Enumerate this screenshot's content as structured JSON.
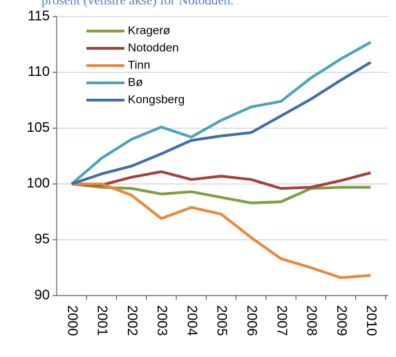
{
  "chart_data": {
    "type": "line",
    "caption": "prosent (venstre akse) for Notodden.",
    "categories": [
      "2000",
      "2001",
      "2002",
      "2003",
      "2004",
      "2005",
      "2006",
      "2007",
      "2008",
      "2009",
      "2010"
    ],
    "series": [
      {
        "name": "Kragerø",
        "color": "#7f9f3f",
        "values": [
          100,
          99.7,
          99.6,
          99.1,
          99.3,
          98.8,
          98.3,
          98.4,
          99.6,
          99.7,
          99.7
        ]
      },
      {
        "name": "Notodden",
        "color": "#a5403a",
        "values": [
          100,
          99.9,
          100.6,
          101.1,
          100.4,
          100.7,
          100.4,
          99.6,
          99.7,
          100.3,
          101.0
        ]
      },
      {
        "name": "Tinn",
        "color": "#e9883a",
        "values": [
          100,
          100.0,
          99.0,
          96.9,
          97.9,
          97.3,
          95.2,
          93.3,
          92.5,
          91.6,
          91.8
        ]
      },
      {
        "name": "Bø",
        "color": "#4aa4b8",
        "values": [
          100,
          102.3,
          104.0,
          105.1,
          104.2,
          105.7,
          106.9,
          107.4,
          109.5,
          111.2,
          112.7
        ]
      },
      {
        "name": "Kongsberg",
        "color": "#3f6ea8",
        "values": [
          100,
          100.9,
          101.6,
          102.7,
          103.9,
          104.3,
          104.6,
          106.1,
          107.6,
          109.3,
          110.9
        ]
      }
    ],
    "ylim": [
      90,
      115
    ],
    "yticks": [
      90,
      95,
      100,
      105,
      110,
      115
    ],
    "grid": true,
    "legend": "top-left"
  }
}
